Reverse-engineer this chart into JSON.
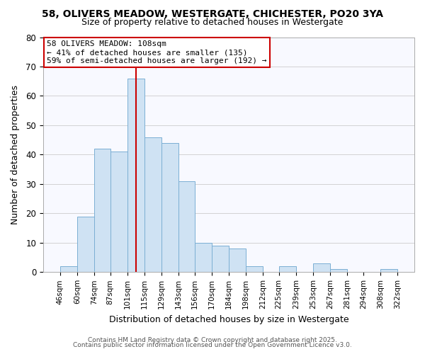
{
  "title1": "58, OLIVERS MEADOW, WESTERGATE, CHICHESTER, PO20 3YA",
  "title2": "Size of property relative to detached houses in Westergate",
  "xlabel": "Distribution of detached houses by size in Westergate",
  "ylabel": "Number of detached properties",
  "bin_edges": [
    46,
    60,
    74,
    87,
    101,
    115,
    129,
    143,
    156,
    170,
    184,
    198,
    212,
    225,
    239,
    253,
    267,
    281,
    294,
    308,
    322
  ],
  "bar_heights": [
    2,
    19,
    42,
    41,
    66,
    46,
    44,
    31,
    10,
    9,
    8,
    2,
    0,
    2,
    0,
    3,
    1,
    0,
    0,
    1
  ],
  "bar_color": "#cfe2f3",
  "bar_edge_color": "#7bafd4",
  "grid_color": "#cccccc",
  "background_color": "#ffffff",
  "plot_bg_color": "#f8f9ff",
  "vline_x": 108,
  "vline_color": "#cc0000",
  "annotation_title": "58 OLIVERS MEADOW: 108sqm",
  "annotation_line1": "← 41% of detached houses are smaller (135)",
  "annotation_line2": "59% of semi-detached houses are larger (192) →",
  "ylim": [
    0,
    80
  ],
  "yticks": [
    0,
    10,
    20,
    30,
    40,
    50,
    60,
    70,
    80
  ],
  "footer1": "Contains HM Land Registry data © Crown copyright and database right 2025.",
  "footer2": "Contains public sector information licensed under the Open Government Licence v3.0."
}
